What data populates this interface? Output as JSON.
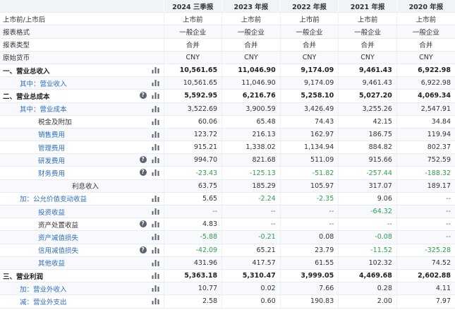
{
  "years": [
    "2024 三季报",
    "2023 年报",
    "2022 年报",
    "2021 年报",
    "2020 年报"
  ],
  "rows": [
    {
      "label": "上市前/上市后",
      "indent": 0,
      "style": "plain",
      "align": "center",
      "q": false,
      "chart": false,
      "values": [
        "上市前",
        "上市前",
        "上市前",
        "上市前",
        "上市前"
      ]
    },
    {
      "label": "报表格式",
      "indent": 0,
      "style": "plain",
      "align": "center",
      "q": false,
      "chart": false,
      "values": [
        "一般企业",
        "一般企业",
        "一般企业",
        "一般企业",
        "一般企业"
      ]
    },
    {
      "label": "报表类型",
      "indent": 0,
      "style": "plain",
      "align": "center",
      "q": false,
      "chart": false,
      "values": [
        "合并",
        "合并",
        "合并",
        "合并",
        "合并"
      ]
    },
    {
      "label": "原始货币",
      "indent": 0,
      "style": "plain",
      "align": "center",
      "q": false,
      "chart": false,
      "values": [
        "CNY",
        "CNY",
        "CNY",
        "CNY",
        "CNY"
      ]
    },
    {
      "label": "一、营业总收入",
      "indent": 0,
      "style": "strong",
      "bold": true,
      "q": false,
      "chart": true,
      "values": [
        "10,561.65",
        "11,046.90",
        "9,174.09",
        "9,461.43",
        "6,922.98"
      ]
    },
    {
      "label": "其中：营业收入",
      "indent": 1,
      "style": "blue",
      "q": false,
      "chart": true,
      "values": [
        "10,561.65",
        "11,046.90",
        "9,174.09",
        "9,461.43",
        "6,922.98"
      ]
    },
    {
      "label": "二、营业总成本",
      "indent": 0,
      "style": "strong",
      "bold": true,
      "q": true,
      "chart": true,
      "values": [
        "5,592.95",
        "6,216.76",
        "5,258.10",
        "5,027.20",
        "4,069.34"
      ]
    },
    {
      "label": "其中：营业成本",
      "indent": 1,
      "style": "blue",
      "q": false,
      "chart": true,
      "values": [
        "3,522.69",
        "3,900.59",
        "3,426.49",
        "3,255.26",
        "2,547.91"
      ]
    },
    {
      "label": "税金及附加",
      "indent": 2,
      "style": "plain",
      "q": false,
      "chart": true,
      "values": [
        "60.06",
        "65.48",
        "74.43",
        "42.15",
        "34.84"
      ]
    },
    {
      "label": "销售费用",
      "indent": 2,
      "style": "blue",
      "q": false,
      "chart": true,
      "values": [
        "123.72",
        "216.13",
        "162.97",
        "186.75",
        "119.94"
      ]
    },
    {
      "label": "管理费用",
      "indent": 2,
      "style": "blue",
      "q": false,
      "chart": true,
      "values": [
        "915.21",
        "1,338.02",
        "1,134.94",
        "884.82",
        "802.37"
      ]
    },
    {
      "label": "研发费用",
      "indent": 2,
      "style": "blue",
      "q": true,
      "chart": true,
      "values": [
        "994.70",
        "821.68",
        "511.09",
        "915.66",
        "752.59"
      ]
    },
    {
      "label": "财务费用",
      "indent": 2,
      "style": "blue",
      "q": true,
      "chart": true,
      "values": [
        "-23.43",
        "-125.13",
        "-51.82",
        "-257.44",
        "-188.32"
      ]
    },
    {
      "label": "利息收入",
      "indent": 3,
      "style": "plain",
      "q": false,
      "chart": false,
      "values": [
        "63.75",
        "185.29",
        "105.97",
        "317.07",
        "189.17"
      ]
    },
    {
      "label": "加：公允价值变动收益",
      "indent": 1,
      "style": "blue",
      "q": false,
      "chart": true,
      "values": [
        "5.65",
        "-2.24",
        "-2.35",
        "9.06",
        "--"
      ]
    },
    {
      "label": "投资收益",
      "indent": 2,
      "style": "blue",
      "q": false,
      "chart": true,
      "values": [
        "--",
        "--",
        "--",
        "-64.32",
        "--"
      ]
    },
    {
      "label": "资产处置收益",
      "indent": 2,
      "style": "plain",
      "q": true,
      "chart": true,
      "values": [
        "4.83",
        "--",
        "--",
        "--",
        "--"
      ]
    },
    {
      "label": "资产减值损失",
      "indent": 2,
      "style": "blue",
      "q": false,
      "chart": true,
      "values": [
        "-5.88",
        "-0.21",
        "0.08",
        "-0.08",
        "--"
      ]
    },
    {
      "label": "信用减值损失",
      "indent": 2,
      "style": "blue",
      "q": true,
      "chart": true,
      "values": [
        "-42.09",
        "65.21",
        "23.79",
        "-11.52",
        "-325.28"
      ]
    },
    {
      "label": "其他收益",
      "indent": 2,
      "style": "blue",
      "q": false,
      "chart": true,
      "values": [
        "431.96",
        "417.57",
        "61.55",
        "102.32",
        "74.52"
      ]
    },
    {
      "label": "三、营业利润",
      "indent": 0,
      "style": "strong",
      "bold": true,
      "q": false,
      "chart": true,
      "values": [
        "5,363.18",
        "5,310.47",
        "3,999.05",
        "4,469.68",
        "2,602.88"
      ]
    },
    {
      "label": "加：营业外收入",
      "indent": 1,
      "style": "blue",
      "q": false,
      "chart": true,
      "values": [
        "10.77",
        "0.02",
        "7.66",
        "0.28",
        "4.11"
      ]
    },
    {
      "label": "减：营业外支出",
      "indent": 1,
      "style": "blue",
      "q": false,
      "chart": true,
      "values": [
        "2.58",
        "0.60",
        "190.83",
        "2.00",
        "7.97"
      ]
    }
  ],
  "colors": {
    "negative": "#2aa14d",
    "link": "#2f6fbe",
    "header_bg": "#f0f3f7",
    "icon": "#5a6270"
  },
  "icons": {
    "question": "question-circle-icon",
    "chart": "bar-chart-icon"
  }
}
